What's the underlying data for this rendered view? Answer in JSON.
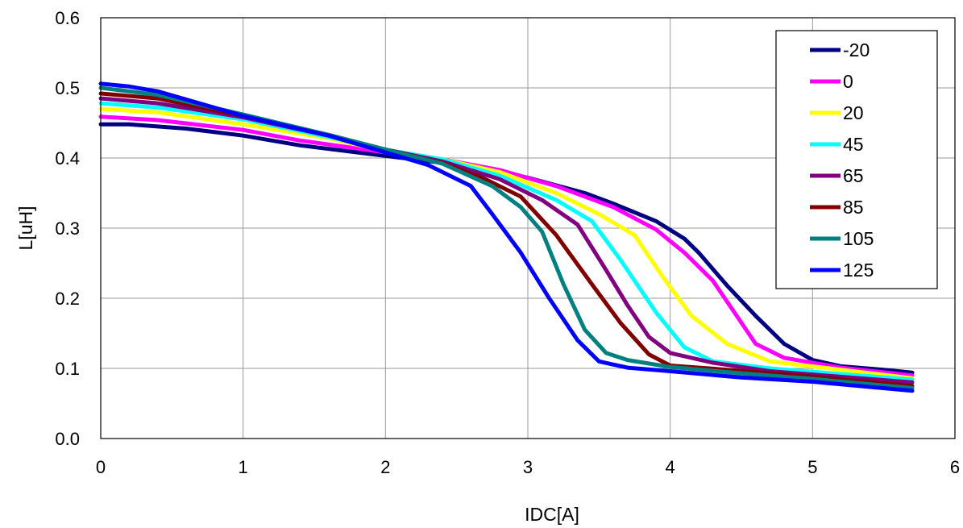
{
  "chart_data": {
    "type": "line",
    "title": "",
    "xlabel": "IDC[A]",
    "ylabel": "L[uH]",
    "xlim": [
      0,
      6
    ],
    "ylim": [
      0,
      0.6
    ],
    "x_ticks": [
      "0",
      "1",
      "2",
      "3",
      "4",
      "5",
      "6"
    ],
    "y_ticks": [
      "0.0",
      "0.1",
      "0.2",
      "0.3",
      "0.4",
      "0.5",
      "0.6"
    ],
    "grid": true,
    "legend_position": "top-right",
    "series": [
      {
        "name": "-20",
        "color": "#000080",
        "points": [
          [
            0,
            0.448
          ],
          [
            0.2,
            0.448
          ],
          [
            0.6,
            0.442
          ],
          [
            1.0,
            0.432
          ],
          [
            1.4,
            0.418
          ],
          [
            1.8,
            0.408
          ],
          [
            2.2,
            0.398
          ],
          [
            2.6,
            0.388
          ],
          [
            3.0,
            0.372
          ],
          [
            3.4,
            0.35
          ],
          [
            3.6,
            0.335
          ],
          [
            3.9,
            0.31
          ],
          [
            4.1,
            0.285
          ],
          [
            4.2,
            0.265
          ],
          [
            4.4,
            0.218
          ],
          [
            4.6,
            0.175
          ],
          [
            4.8,
            0.135
          ],
          [
            5.0,
            0.112
          ],
          [
            5.2,
            0.103
          ],
          [
            5.5,
            0.098
          ],
          [
            5.7,
            0.094
          ]
        ]
      },
      {
        "name": "0",
        "color": "#FF00FF",
        "points": [
          [
            0,
            0.459
          ],
          [
            0.4,
            0.454
          ],
          [
            1.0,
            0.44
          ],
          [
            1.4,
            0.425
          ],
          [
            2.0,
            0.408
          ],
          [
            2.4,
            0.398
          ],
          [
            2.8,
            0.383
          ],
          [
            3.2,
            0.36
          ],
          [
            3.6,
            0.33
          ],
          [
            3.9,
            0.298
          ],
          [
            4.1,
            0.265
          ],
          [
            4.3,
            0.225
          ],
          [
            4.45,
            0.18
          ],
          [
            4.6,
            0.135
          ],
          [
            4.8,
            0.115
          ],
          [
            5.2,
            0.101
          ],
          [
            5.7,
            0.09
          ]
        ]
      },
      {
        "name": "20",
        "color": "#FFFF00",
        "points": [
          [
            0,
            0.47
          ],
          [
            0.4,
            0.465
          ],
          [
            1.0,
            0.448
          ],
          [
            1.6,
            0.428
          ],
          [
            2.0,
            0.41
          ],
          [
            2.4,
            0.398
          ],
          [
            2.8,
            0.38
          ],
          [
            3.2,
            0.35
          ],
          [
            3.5,
            0.32
          ],
          [
            3.75,
            0.29
          ],
          [
            3.95,
            0.23
          ],
          [
            4.15,
            0.175
          ],
          [
            4.4,
            0.135
          ],
          [
            4.7,
            0.11
          ],
          [
            5.2,
            0.098
          ],
          [
            5.7,
            0.086
          ]
        ]
      },
      {
        "name": "45",
        "color": "#00FFFF",
        "points": [
          [
            0,
            0.478
          ],
          [
            0.4,
            0.472
          ],
          [
            1.0,
            0.455
          ],
          [
            1.6,
            0.43
          ],
          [
            2.0,
            0.412
          ],
          [
            2.4,
            0.398
          ],
          [
            2.8,
            0.375
          ],
          [
            3.2,
            0.34
          ],
          [
            3.45,
            0.31
          ],
          [
            3.65,
            0.255
          ],
          [
            3.9,
            0.18
          ],
          [
            4.1,
            0.13
          ],
          [
            4.3,
            0.11
          ],
          [
            4.7,
            0.1
          ],
          [
            5.2,
            0.092
          ],
          [
            5.7,
            0.084
          ]
        ]
      },
      {
        "name": "65",
        "color": "#800080",
        "points": [
          [
            0,
            0.485
          ],
          [
            0.4,
            0.478
          ],
          [
            1.0,
            0.458
          ],
          [
            1.6,
            0.432
          ],
          [
            2.0,
            0.412
          ],
          [
            2.4,
            0.395
          ],
          [
            2.8,
            0.37
          ],
          [
            3.1,
            0.34
          ],
          [
            3.35,
            0.305
          ],
          [
            3.55,
            0.24
          ],
          [
            3.7,
            0.19
          ],
          [
            3.85,
            0.145
          ],
          [
            4.0,
            0.122
          ],
          [
            4.3,
            0.108
          ],
          [
            4.7,
            0.096
          ],
          [
            5.2,
            0.088
          ],
          [
            5.7,
            0.08
          ]
        ]
      },
      {
        "name": "85",
        "color": "#800000",
        "points": [
          [
            0,
            0.492
          ],
          [
            0.4,
            0.485
          ],
          [
            1.0,
            0.46
          ],
          [
            1.6,
            0.433
          ],
          [
            2.0,
            0.412
          ],
          [
            2.4,
            0.393
          ],
          [
            2.7,
            0.37
          ],
          [
            2.95,
            0.345
          ],
          [
            3.2,
            0.29
          ],
          [
            3.45,
            0.22
          ],
          [
            3.65,
            0.165
          ],
          [
            3.85,
            0.12
          ],
          [
            4.0,
            0.104
          ],
          [
            4.4,
            0.098
          ],
          [
            5.0,
            0.088
          ],
          [
            5.7,
            0.075
          ]
        ]
      },
      {
        "name": "105",
        "color": "#008080",
        "points": [
          [
            0,
            0.5
          ],
          [
            0.4,
            0.49
          ],
          [
            1.0,
            0.462
          ],
          [
            1.6,
            0.433
          ],
          [
            2.0,
            0.412
          ],
          [
            2.4,
            0.392
          ],
          [
            2.75,
            0.36
          ],
          [
            2.95,
            0.33
          ],
          [
            3.1,
            0.295
          ],
          [
            3.25,
            0.22
          ],
          [
            3.4,
            0.155
          ],
          [
            3.55,
            0.122
          ],
          [
            3.7,
            0.112
          ],
          [
            4.0,
            0.102
          ],
          [
            4.5,
            0.093
          ],
          [
            5.0,
            0.085
          ],
          [
            5.7,
            0.072
          ]
        ]
      },
      {
        "name": "125",
        "color": "#0000FF",
        "points": [
          [
            0,
            0.506
          ],
          [
            0.2,
            0.502
          ],
          [
            0.4,
            0.495
          ],
          [
            1.0,
            0.46
          ],
          [
            1.6,
            0.432
          ],
          [
            2.0,
            0.408
          ],
          [
            2.3,
            0.39
          ],
          [
            2.6,
            0.36
          ],
          [
            2.75,
            0.32
          ],
          [
            2.95,
            0.265
          ],
          [
            3.15,
            0.2
          ],
          [
            3.35,
            0.14
          ],
          [
            3.5,
            0.11
          ],
          [
            3.7,
            0.101
          ],
          [
            4.0,
            0.096
          ],
          [
            4.5,
            0.087
          ],
          [
            5.0,
            0.081
          ],
          [
            5.7,
            0.068
          ]
        ]
      }
    ]
  }
}
